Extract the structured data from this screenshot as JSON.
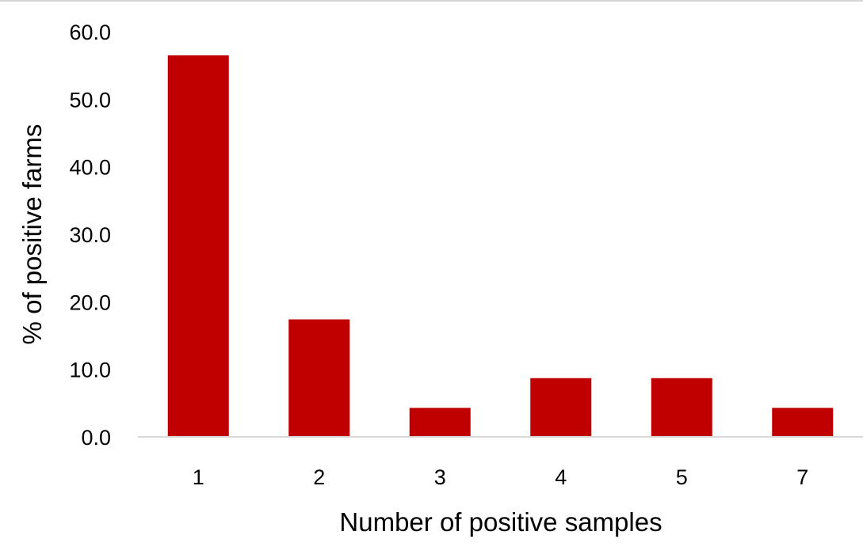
{
  "chart_data": {
    "type": "bar",
    "categories": [
      "1",
      "2",
      "3",
      "4",
      "5",
      "7"
    ],
    "values": [
      56.5,
      17.4,
      4.3,
      8.7,
      8.7,
      4.3
    ],
    "title": "",
    "xlabel": "Number of positive samples",
    "ylabel": "% of positive farms",
    "ylim": [
      0,
      60
    ],
    "yticks": [
      "0.0",
      "10.0",
      "20.0",
      "30.0",
      "40.0",
      "50.0",
      "60.0"
    ],
    "grid": false,
    "legend": "none",
    "bar_color": "#c00000",
    "axis_color": "#d9d9d9"
  }
}
